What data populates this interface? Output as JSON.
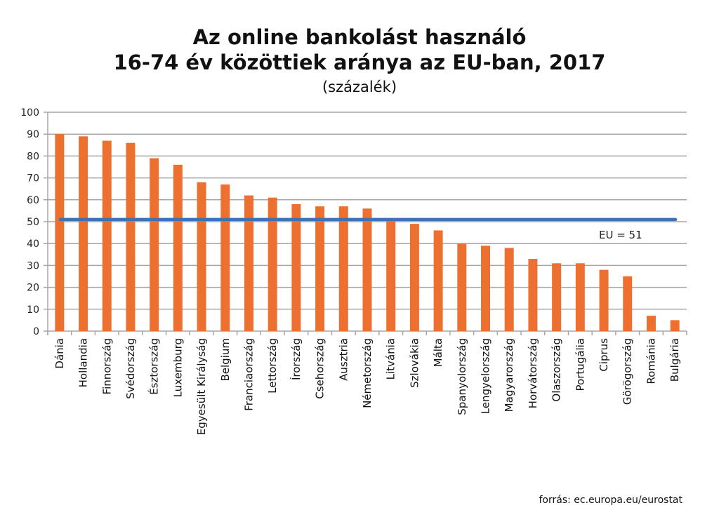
{
  "chart_data": {
    "type": "bar",
    "title_line1": "Az online bankolást használó",
    "title_line2": "16-74 év közöttiek aránya az EU-ban, 2017",
    "subtitle": "(százalék)",
    "xlabel": "",
    "ylabel": "",
    "ylim": [
      0,
      100
    ],
    "yticks": [
      0,
      10,
      20,
      30,
      40,
      50,
      60,
      70,
      80,
      90,
      100
    ],
    "grid": true,
    "categories": [
      "Dánia",
      "Hollandia",
      "Finnország",
      "Svédország",
      "Észtország",
      "Luxemburg",
      "Egyesült Királyság",
      "Belgium",
      "Franciaország",
      "Lettország",
      "Írország",
      "Csehország",
      "Ausztria",
      "Németország",
      "Litvánia",
      "Szlovákia",
      "Málta",
      "Spanyolország",
      "Lengyelország",
      "Magyarország",
      "Horvátország",
      "Olaszország",
      "Portugália",
      "Ciprus",
      "Görögország",
      "Románia",
      "Bulgária"
    ],
    "values": [
      90,
      89,
      87,
      86,
      79,
      76,
      68,
      67,
      62,
      61,
      58,
      57,
      57,
      56,
      51,
      49,
      46,
      40,
      39,
      38,
      33,
      31,
      31,
      28,
      25,
      7,
      5
    ],
    "reference_line": {
      "label": "EU = 51",
      "value": 51
    },
    "colors": {
      "bar": "#ED7030",
      "reference": "#3D73B4",
      "grid": "#A6A6A6"
    }
  },
  "source": "forrás: ec.europa.eu/eurostat"
}
